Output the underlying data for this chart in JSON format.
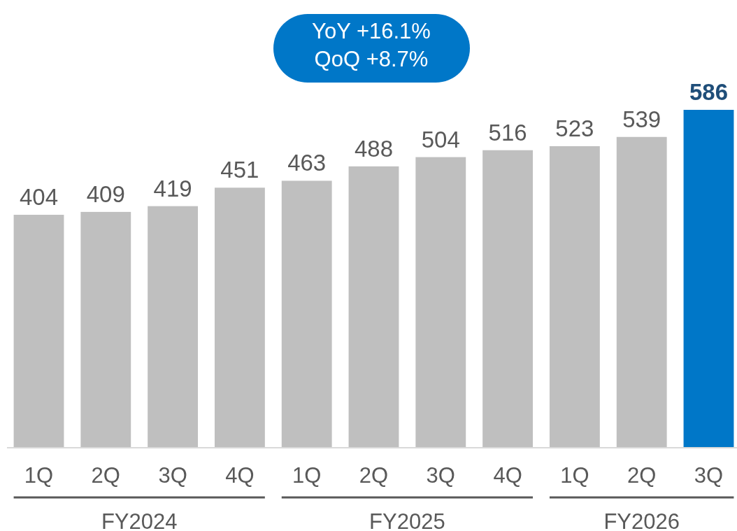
{
  "chart_data": {
    "type": "bar",
    "categories": [
      "1Q",
      "2Q",
      "3Q",
      "4Q",
      "1Q",
      "2Q",
      "3Q",
      "4Q",
      "1Q",
      "2Q",
      "3Q"
    ],
    "values": [
      404,
      409,
      419,
      451,
      463,
      488,
      504,
      516,
      523,
      539,
      586
    ],
    "colors": [
      "#bfbfbf",
      "#bfbfbf",
      "#bfbfbf",
      "#bfbfbf",
      "#bfbfbf",
      "#bfbfbf",
      "#bfbfbf",
      "#bfbfbf",
      "#bfbfbf",
      "#bfbfbf",
      "#0077c8"
    ],
    "data_labels": true,
    "annotations": [
      "YoY +16.1%",
      "QoQ +8.7%",
      "FY2024",
      "FY2025",
      "FY2026"
    ]
  }
}
